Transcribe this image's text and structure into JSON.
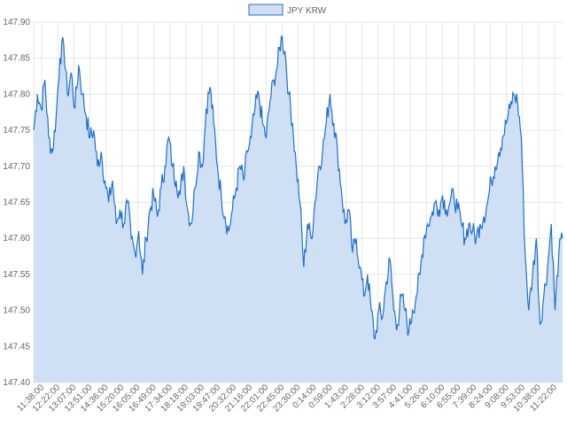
{
  "chart_data": {
    "type": "area",
    "title": "",
    "xlabel": "",
    "ylabel": "",
    "legend": {
      "position": "top-center",
      "entries": [
        "JPY KRW"
      ]
    },
    "grid": true,
    "ylim": [
      147.4,
      147.9
    ],
    "y_ticks": [
      "147.40",
      "147.45",
      "147.50",
      "147.55",
      "147.60",
      "147.65",
      "147.70",
      "147.75",
      "147.80",
      "147.85",
      "147.90"
    ],
    "x_tick_labels": [
      "11:38:00",
      "12:22:00",
      "13:07:00",
      "13:51:00",
      "14:36:00",
      "15:20:00",
      "16:05:00",
      "16:49:00",
      "17:34:00",
      "18:18:00",
      "19:03:00",
      "19:47:00",
      "20:32:00",
      "21:16:00",
      "22:01:00",
      "22:45:00",
      "23:30:00",
      "0:14:00",
      "0:59:00",
      "1:43:00",
      "2:28:00",
      "3:12:00",
      "3:57:00",
      "4:41:00",
      "5:26:00",
      "6:10:00",
      "6:55:00",
      "7:39:00",
      "8:24:00",
      "9:08:00",
      "9:53:00",
      "10:38:00",
      "11:22:00"
    ],
    "colors": {
      "line": "#1f6fd1",
      "fill": "#cfe0f5",
      "legend_fill": "#cfe0f5",
      "legend_stroke": "#1f6fd1"
    },
    "series": [
      {
        "name": "JPY KRW",
        "values": [
          147.75,
          147.8,
          147.78,
          147.82,
          147.74,
          147.72,
          147.77,
          147.85,
          147.87,
          147.8,
          147.83,
          147.78,
          147.84,
          147.8,
          147.77,
          147.74,
          147.75,
          147.7,
          147.72,
          147.68,
          147.65,
          147.68,
          147.62,
          147.64,
          147.62,
          147.65,
          147.6,
          147.58,
          147.61,
          147.55,
          147.6,
          147.64,
          147.66,
          147.63,
          147.67,
          147.7,
          147.74,
          147.7,
          147.68,
          147.66,
          147.7,
          147.64,
          147.62,
          147.67,
          147.72,
          147.7,
          147.78,
          147.81,
          147.76,
          147.7,
          147.66,
          147.63,
          147.61,
          147.64,
          147.67,
          147.7,
          147.68,
          147.72,
          147.74,
          147.78,
          147.8,
          147.76,
          147.74,
          147.79,
          147.82,
          147.84,
          147.88,
          147.86,
          147.8,
          147.76,
          147.7,
          147.65,
          147.56,
          147.62,
          147.6,
          147.65,
          147.7,
          147.72,
          147.76,
          147.8,
          147.76,
          147.72,
          147.67,
          147.62,
          147.64,
          147.58,
          147.6,
          147.56,
          147.52,
          147.55,
          147.5,
          147.46,
          147.5,
          147.49,
          147.54,
          147.57,
          147.5,
          147.48,
          147.52,
          147.5,
          147.47,
          147.5,
          147.52,
          147.55,
          147.6,
          147.62,
          147.63,
          147.65,
          147.64,
          147.66,
          147.64,
          147.65,
          147.66,
          147.64,
          147.62,
          147.6,
          147.62,
          147.61,
          147.6,
          147.62,
          147.63,
          147.65,
          147.68,
          147.7,
          147.72,
          147.74,
          147.76,
          147.78,
          147.8,
          147.79,
          147.74,
          147.58,
          147.5,
          147.55,
          147.6,
          147.48,
          147.52,
          147.56,
          147.62,
          147.5,
          147.58,
          147.6
        ]
      }
    ]
  }
}
